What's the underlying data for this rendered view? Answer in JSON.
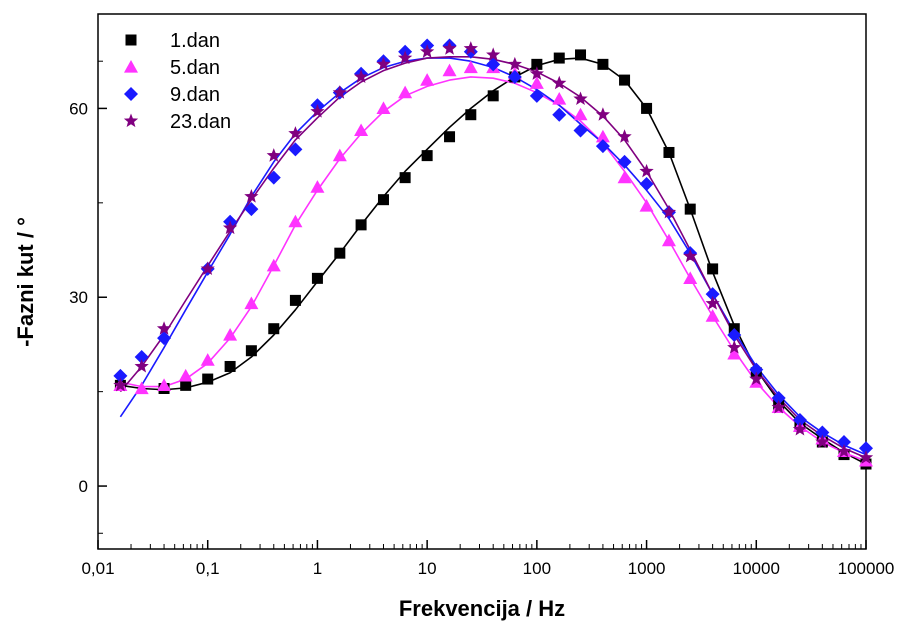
{
  "chart_data": {
    "type": "scatter",
    "xscale": "log",
    "xlim": [
      0.01,
      100000
    ],
    "ylim": [
      -10,
      75
    ],
    "xlabel": "Frekvencija / Hz",
    "ylabel": "-Fazni kut / °",
    "legend_position": "top-left",
    "x_ticks": [
      0.01,
      0.1,
      1,
      10,
      100,
      1000,
      10000,
      100000
    ],
    "x_tick_labels": [
      "0,01",
      "0,1",
      "1",
      "10",
      "100",
      "1000",
      "10000",
      "100000"
    ],
    "y_ticks": [
      0,
      30,
      60
    ],
    "y_tick_labels": [
      "0",
      "30",
      "60"
    ],
    "series": [
      {
        "name": "1.dan",
        "marker": "square-icon",
        "color": "#000000",
        "points": [
          [
            0.016,
            16
          ],
          [
            0.04,
            15.5
          ],
          [
            0.063,
            16
          ],
          [
            0.1,
            17
          ],
          [
            0.16,
            19
          ],
          [
            0.25,
            21.5
          ],
          [
            0.4,
            25
          ],
          [
            0.63,
            29.5
          ],
          [
            1,
            33
          ],
          [
            1.6,
            37
          ],
          [
            2.5,
            41.5
          ],
          [
            4,
            45.5
          ],
          [
            6.3,
            49
          ],
          [
            10,
            52.5
          ],
          [
            16,
            55.5
          ],
          [
            25,
            59
          ],
          [
            40,
            62
          ],
          [
            63,
            65
          ],
          [
            100,
            67
          ],
          [
            160,
            68
          ],
          [
            250,
            68.5
          ],
          [
            400,
            67
          ],
          [
            630,
            64.5
          ],
          [
            1000,
            60
          ],
          [
            1600,
            53
          ],
          [
            2500,
            44
          ],
          [
            4000,
            34.5
          ],
          [
            6300,
            25
          ],
          [
            10000,
            18
          ],
          [
            16000,
            13
          ],
          [
            25000,
            9.5
          ],
          [
            40000,
            7
          ],
          [
            63000,
            5
          ],
          [
            100000,
            3.5
          ]
        ],
        "fit": [
          [
            0.016,
            16
          ],
          [
            0.025,
            15.5
          ],
          [
            0.04,
            15.3
          ],
          [
            0.063,
            15.6
          ],
          [
            0.1,
            16.5
          ],
          [
            0.16,
            18
          ],
          [
            0.25,
            20.5
          ],
          [
            0.4,
            24
          ],
          [
            0.63,
            28
          ],
          [
            1,
            32.5
          ],
          [
            1.6,
            37
          ],
          [
            2.5,
            41.5
          ],
          [
            4,
            46
          ],
          [
            6.3,
            50
          ],
          [
            10,
            53.5
          ],
          [
            16,
            57
          ],
          [
            25,
            60
          ],
          [
            40,
            62.8
          ],
          [
            63,
            65
          ],
          [
            100,
            66.8
          ],
          [
            160,
            67.8
          ],
          [
            250,
            68
          ],
          [
            400,
            67
          ],
          [
            630,
            64.5
          ],
          [
            1000,
            60
          ],
          [
            1600,
            53
          ],
          [
            2500,
            44
          ],
          [
            4000,
            34
          ],
          [
            6300,
            25.5
          ],
          [
            10000,
            18.5
          ],
          [
            16000,
            13.5
          ],
          [
            25000,
            10
          ],
          [
            40000,
            7.5
          ],
          [
            63000,
            5.3
          ],
          [
            100000,
            3.5
          ]
        ]
      },
      {
        "name": "5.dan",
        "marker": "triangle-icon",
        "color": "#ff33ff",
        "points": [
          [
            0.016,
            16
          ],
          [
            0.025,
            15.5
          ],
          [
            0.04,
            16
          ],
          [
            0.063,
            17.5
          ],
          [
            0.1,
            20
          ],
          [
            0.16,
            24
          ],
          [
            0.25,
            29
          ],
          [
            0.4,
            35
          ],
          [
            0.63,
            42
          ],
          [
            1,
            47.5
          ],
          [
            1.6,
            52.5
          ],
          [
            2.5,
            56.5
          ],
          [
            4,
            60
          ],
          [
            6.3,
            62.5
          ],
          [
            10,
            64.5
          ],
          [
            16,
            66
          ],
          [
            25,
            66.5
          ],
          [
            40,
            66.5
          ],
          [
            63,
            65.5
          ],
          [
            100,
            64
          ],
          [
            160,
            61.5
          ],
          [
            250,
            59
          ],
          [
            400,
            55.5
          ],
          [
            630,
            49
          ],
          [
            1000,
            44.5
          ],
          [
            1600,
            39
          ],
          [
            2500,
            33
          ],
          [
            4000,
            27
          ],
          [
            6300,
            21
          ],
          [
            10000,
            16.5
          ],
          [
            16000,
            12.5
          ],
          [
            25000,
            9.5
          ],
          [
            40000,
            7.5
          ],
          [
            63000,
            5.5
          ],
          [
            100000,
            4
          ]
        ],
        "fit": [
          [
            0.016,
            16.5
          ],
          [
            0.025,
            15.8
          ],
          [
            0.04,
            15.8
          ],
          [
            0.063,
            17
          ],
          [
            0.1,
            19.5
          ],
          [
            0.16,
            23.5
          ],
          [
            0.25,
            28.5
          ],
          [
            0.4,
            35
          ],
          [
            0.63,
            41.5
          ],
          [
            1,
            47
          ],
          [
            1.6,
            52
          ],
          [
            2.5,
            56
          ],
          [
            4,
            59.5
          ],
          [
            6.3,
            62
          ],
          [
            10,
            63.5
          ],
          [
            16,
            64.5
          ],
          [
            25,
            65
          ],
          [
            40,
            64.8
          ],
          [
            63,
            64
          ],
          [
            100,
            62.5
          ],
          [
            160,
            60.5
          ],
          [
            250,
            58
          ],
          [
            400,
            54.5
          ],
          [
            630,
            50
          ],
          [
            1000,
            45
          ],
          [
            1600,
            39
          ],
          [
            2500,
            33
          ],
          [
            4000,
            27
          ],
          [
            6300,
            21.5
          ],
          [
            10000,
            16.5
          ],
          [
            16000,
            12.5
          ],
          [
            25000,
            9.5
          ],
          [
            40000,
            7
          ],
          [
            63000,
            5.3
          ],
          [
            100000,
            4
          ]
        ]
      },
      {
        "name": "9.dan",
        "marker": "diamond-icon",
        "color": "#1a1aff",
        "points": [
          [
            0.016,
            17.5
          ],
          [
            0.025,
            20.5
          ],
          [
            0.04,
            23.5
          ],
          [
            0.1,
            34.5
          ],
          [
            0.16,
            42
          ],
          [
            0.25,
            44
          ],
          [
            0.4,
            49
          ],
          [
            0.63,
            53.5
          ],
          [
            1,
            60.5
          ],
          [
            1.6,
            62.5
          ],
          [
            2.5,
            65.5
          ],
          [
            4,
            67.5
          ],
          [
            6.3,
            69
          ],
          [
            10,
            70
          ],
          [
            16,
            70
          ],
          [
            25,
            69
          ],
          [
            40,
            67
          ],
          [
            63,
            65
          ],
          [
            100,
            62
          ],
          [
            160,
            59
          ],
          [
            250,
            56.5
          ],
          [
            400,
            54
          ],
          [
            630,
            51.5
          ],
          [
            1000,
            48
          ],
          [
            1600,
            43.5
          ],
          [
            2500,
            37
          ],
          [
            4000,
            30.5
          ],
          [
            6300,
            24
          ],
          [
            10000,
            18.5
          ],
          [
            16000,
            14
          ],
          [
            25000,
            10.5
          ],
          [
            40000,
            8.5
          ],
          [
            63000,
            7
          ],
          [
            100000,
            6
          ]
        ],
        "fit": [
          [
            0.016,
            11
          ],
          [
            0.025,
            16
          ],
          [
            0.04,
            22
          ],
          [
            0.063,
            28
          ],
          [
            0.1,
            34
          ],
          [
            0.16,
            40
          ],
          [
            0.25,
            46
          ],
          [
            0.4,
            51.5
          ],
          [
            0.63,
            56
          ],
          [
            1,
            59.5
          ],
          [
            1.6,
            62.5
          ],
          [
            2.5,
            64.8
          ],
          [
            4,
            66.5
          ],
          [
            6.3,
            67.5
          ],
          [
            10,
            68
          ],
          [
            16,
            68
          ],
          [
            25,
            67.5
          ],
          [
            40,
            66.5
          ],
          [
            63,
            65
          ],
          [
            100,
            63
          ],
          [
            160,
            60.5
          ],
          [
            250,
            57.5
          ],
          [
            400,
            54.5
          ],
          [
            630,
            51
          ],
          [
            1000,
            47
          ],
          [
            1600,
            42.5
          ],
          [
            2500,
            37
          ],
          [
            4000,
            30.5
          ],
          [
            6300,
            24.5
          ],
          [
            10000,
            19
          ],
          [
            16000,
            14.5
          ],
          [
            25000,
            11
          ],
          [
            40000,
            8.5
          ],
          [
            63000,
            6.5
          ],
          [
            100000,
            5
          ]
        ]
      },
      {
        "name": "23.dan",
        "marker": "star-icon",
        "color": "#800080",
        "points": [
          [
            0.016,
            16
          ],
          [
            0.025,
            19
          ],
          [
            0.04,
            25
          ],
          [
            0.1,
            34.5
          ],
          [
            0.16,
            41
          ],
          [
            0.25,
            46
          ],
          [
            0.4,
            52.5
          ],
          [
            0.63,
            56
          ],
          [
            1,
            59.5
          ],
          [
            1.6,
            62.5
          ],
          [
            2.5,
            65
          ],
          [
            4,
            67
          ],
          [
            6.3,
            68
          ],
          [
            10,
            69
          ],
          [
            16,
            69.5
          ],
          [
            25,
            69.5
          ],
          [
            40,
            68.5
          ],
          [
            63,
            67
          ],
          [
            100,
            65.5
          ],
          [
            160,
            64
          ],
          [
            250,
            61.5
          ],
          [
            400,
            59
          ],
          [
            630,
            55.5
          ],
          [
            1000,
            50
          ],
          [
            1600,
            43.5
          ],
          [
            2500,
            36.5
          ],
          [
            4000,
            29
          ],
          [
            6300,
            22
          ],
          [
            10000,
            17
          ],
          [
            16000,
            12.5
          ],
          [
            25000,
            9
          ],
          [
            40000,
            7
          ],
          [
            63000,
            5.5
          ],
          [
            100000,
            4.5
          ]
        ],
        "fit": [
          [
            0.016,
            15
          ],
          [
            0.025,
            19
          ],
          [
            0.04,
            24
          ],
          [
            0.063,
            29.5
          ],
          [
            0.1,
            35
          ],
          [
            0.16,
            40.5
          ],
          [
            0.25,
            45.5
          ],
          [
            0.4,
            50.5
          ],
          [
            0.63,
            55
          ],
          [
            1,
            58.5
          ],
          [
            1.6,
            61.8
          ],
          [
            2.5,
            64.2
          ],
          [
            4,
            66
          ],
          [
            6.3,
            67.2
          ],
          [
            10,
            68
          ],
          [
            16,
            68.2
          ],
          [
            25,
            68.2
          ],
          [
            40,
            67.8
          ],
          [
            63,
            67
          ],
          [
            100,
            65.8
          ],
          [
            160,
            64
          ],
          [
            250,
            61.8
          ],
          [
            400,
            58.8
          ],
          [
            630,
            55
          ],
          [
            1000,
            50
          ],
          [
            1600,
            44
          ],
          [
            2500,
            37.5
          ],
          [
            4000,
            30.5
          ],
          [
            6300,
            24
          ],
          [
            10000,
            18.5
          ],
          [
            16000,
            14
          ],
          [
            25000,
            10.5
          ],
          [
            40000,
            8
          ],
          [
            63000,
            6
          ],
          [
            100000,
            4.5
          ]
        ]
      }
    ]
  }
}
